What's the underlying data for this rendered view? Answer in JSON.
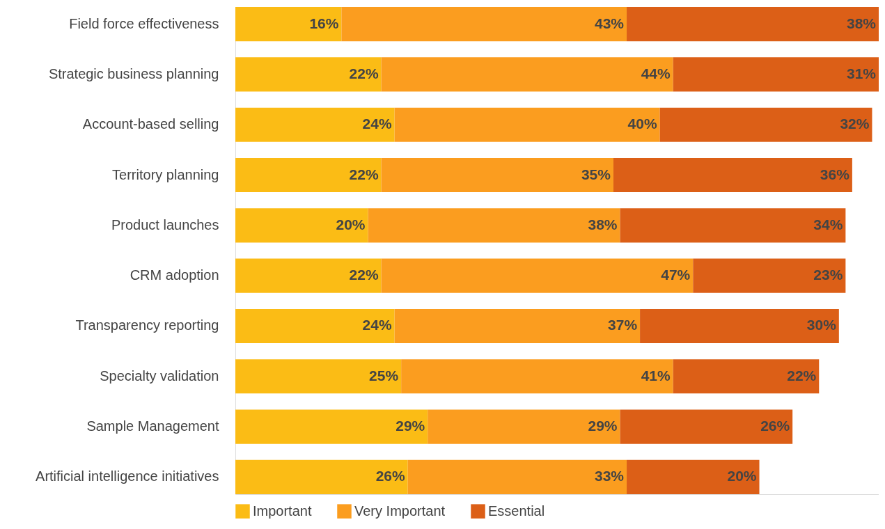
{
  "chart_data": {
    "type": "bar",
    "orientation": "horizontal",
    "stacked": true,
    "legend": "bottom",
    "grid": false,
    "categories": [
      "Field force effectiveness",
      "Strategic business planning",
      "Account-based selling",
      "Territory planning",
      "Product launches",
      "CRM adoption",
      "Transparency reporting",
      "Specialty validation",
      "Sample Management",
      "Artificial intelligence initiatives"
    ],
    "series": [
      {
        "name": "Important",
        "color": "#fbbc15",
        "values": [
          16,
          22,
          24,
          22,
          20,
          22,
          24,
          25,
          29,
          26
        ],
        "value_labels": [
          "16%",
          "22%",
          "24%",
          "22%",
          "20%",
          "22%",
          "24%",
          "25%",
          "29%",
          "26%"
        ]
      },
      {
        "name": "Very Important",
        "color": "#fb9d1f",
        "values": [
          43,
          44,
          40,
          35,
          38,
          47,
          37,
          41,
          29,
          33
        ],
        "value_labels": [
          "43%",
          "44%",
          "40%",
          "35%",
          "38%",
          "47%",
          "37%",
          "41%",
          "29%",
          "33%"
        ]
      },
      {
        "name": "Essential",
        "color": "#dc5f17",
        "values": [
          38,
          31,
          32,
          36,
          34,
          23,
          30,
          22,
          26,
          20
        ],
        "value_labels": [
          "38%",
          "31%",
          "32%",
          "36%",
          "34%",
          "23%",
          "30%",
          "22%",
          "26%",
          "20%"
        ]
      }
    ]
  }
}
